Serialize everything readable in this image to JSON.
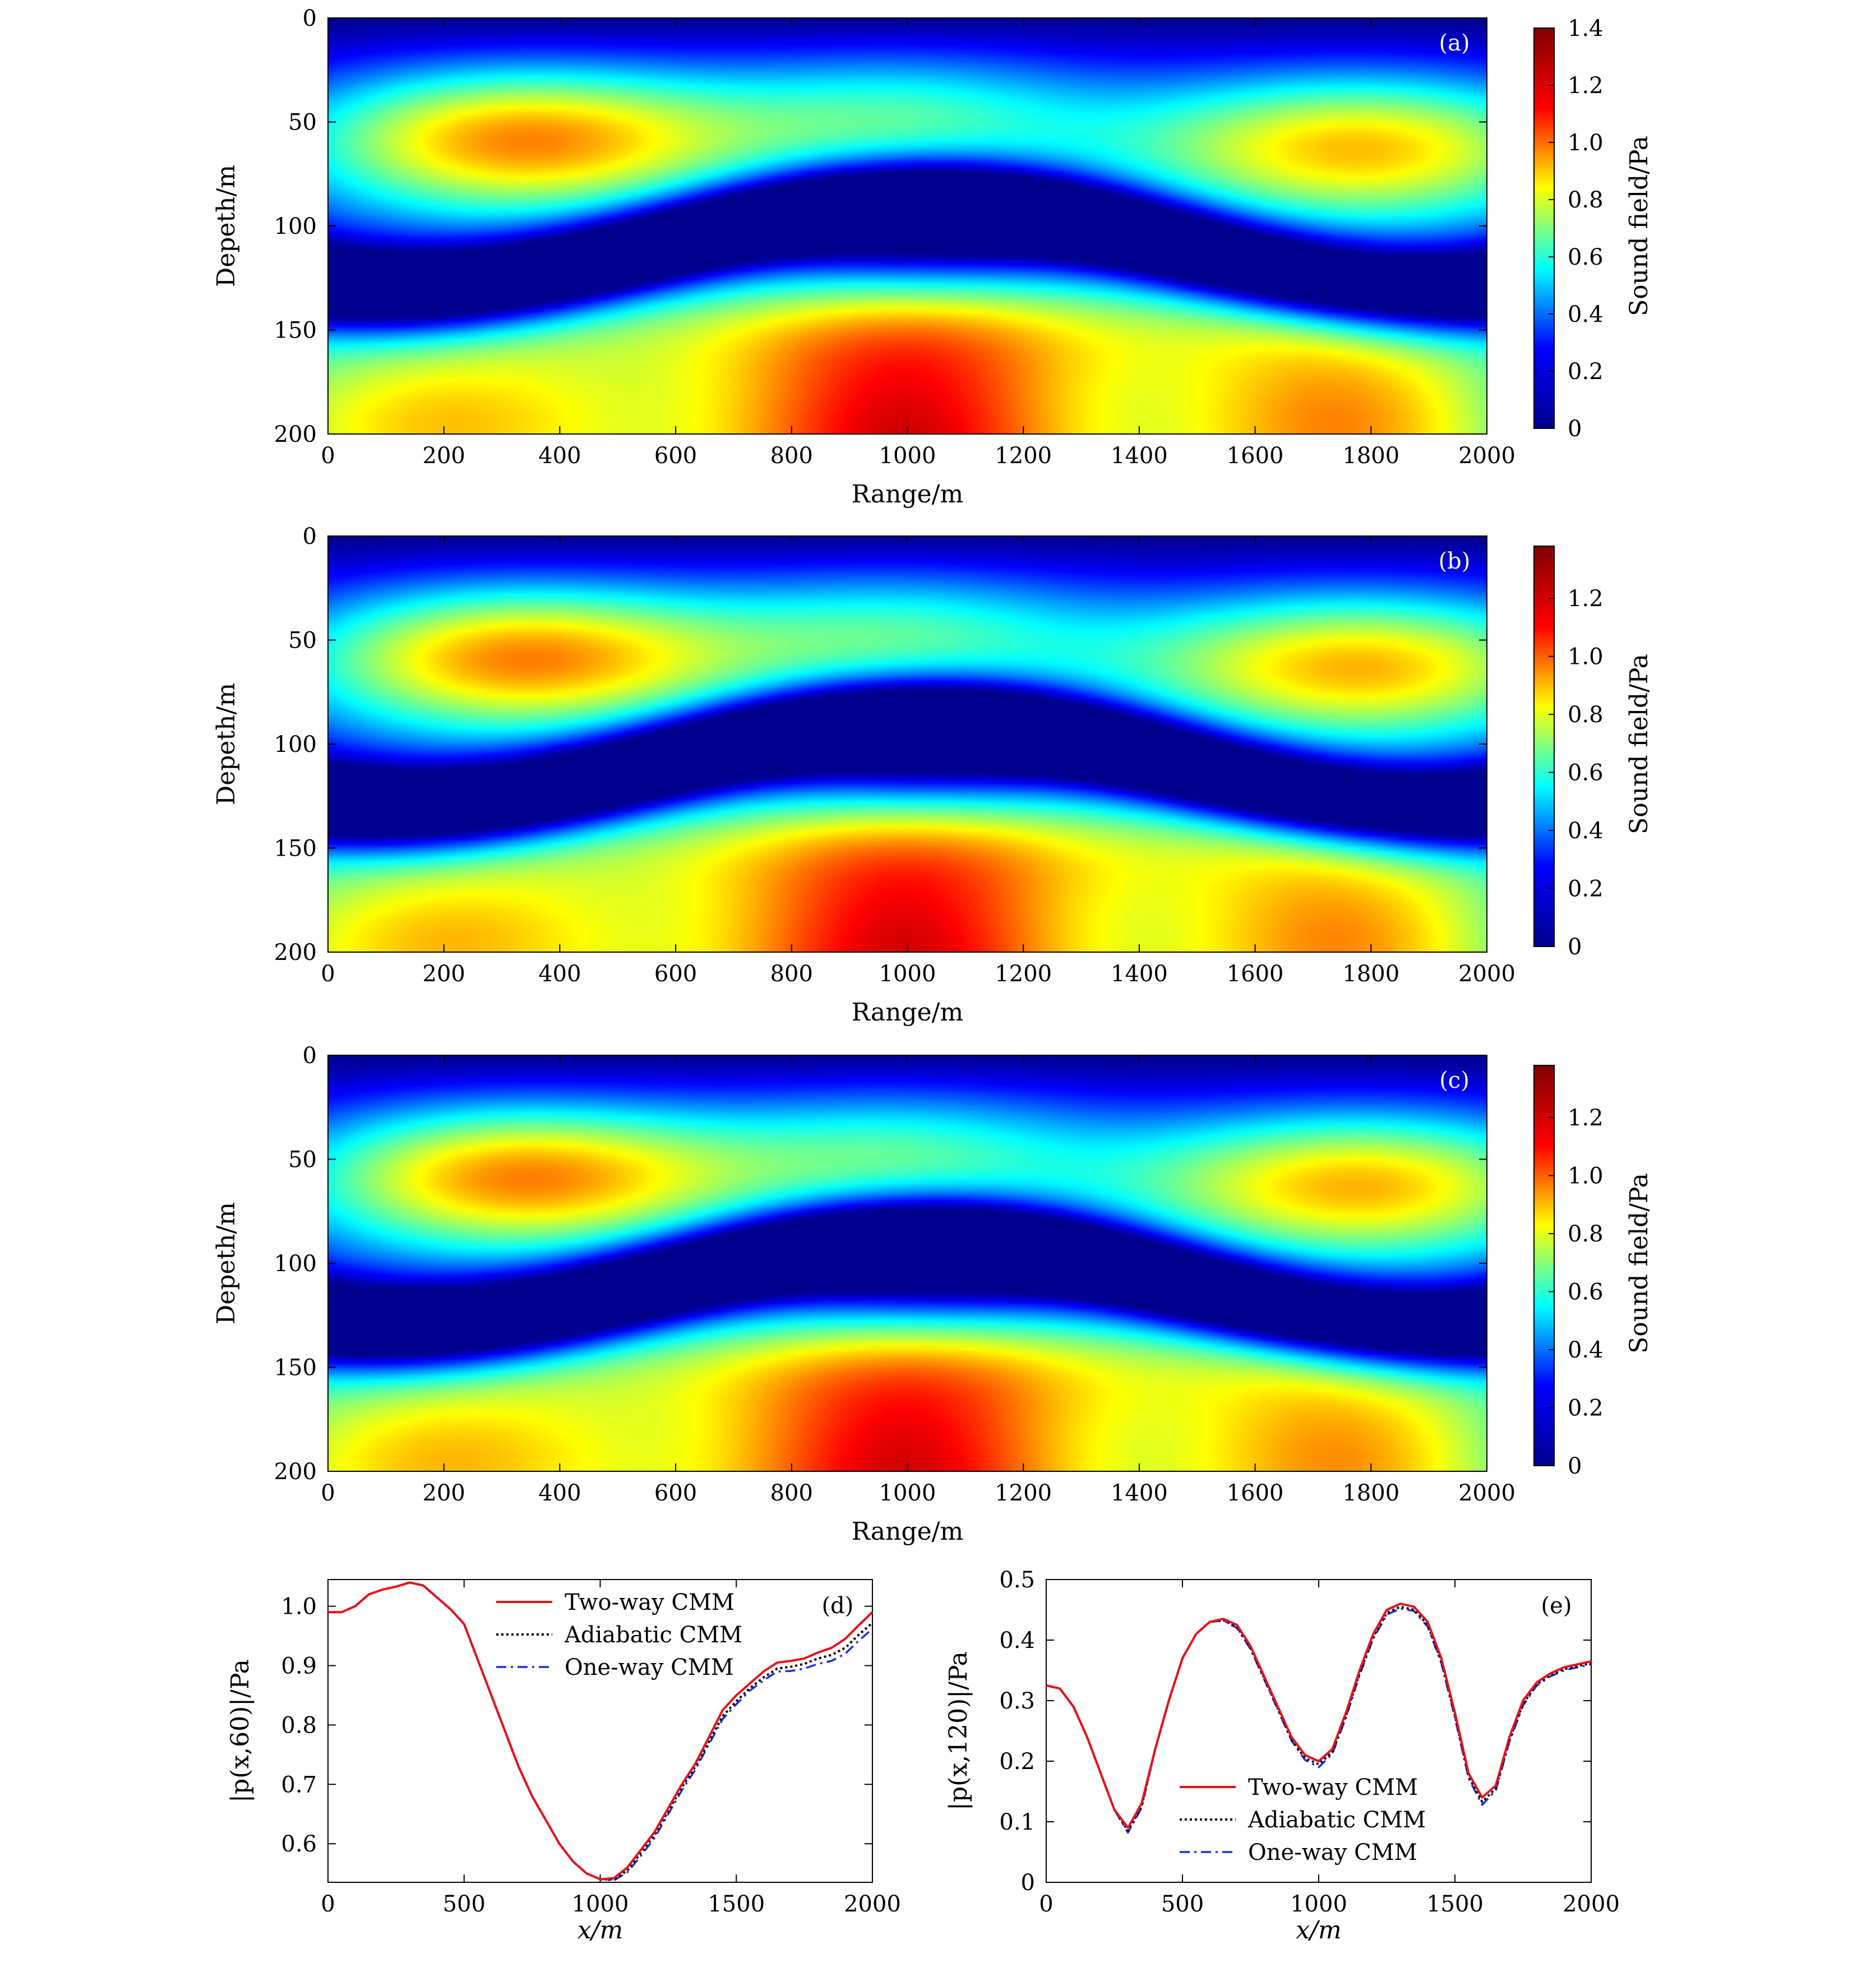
{
  "figure": {
    "colors": {
      "two_way": "#e8101a",
      "adiabatic": "#000000",
      "one_way": "#1a2fd8",
      "jet_colormap": [
        "#00008f",
        "#0000ff",
        "#00ffff",
        "#ffff00",
        "#ff0000",
        "#800000"
      ]
    }
  },
  "chart_data": [
    {
      "type": "heatmap",
      "panel_label": "(a)",
      "xlabel": "Range/m",
      "ylabel": "Depeth/m",
      "colorbar_label": "Sound field/Pa",
      "xlim": [
        0,
        2000
      ],
      "ylim": [
        200,
        0
      ],
      "xticks": [
        "0",
        "200",
        "400",
        "600",
        "800",
        "1000",
        "1200",
        "1400",
        "1600",
        "1800",
        "2000"
      ],
      "yticks": [
        "0",
        "50",
        "100",
        "150",
        "200"
      ],
      "colorbar_range": [
        0,
        1.4
      ],
      "colorbar_ticks": [
        "0",
        "0.2",
        "0.4",
        "0.6",
        "0.8",
        "1.0",
        "1.2",
        "1.4"
      ],
      "features": [
        {
          "kind": "maximum",
          "x": 1000,
          "y": 200,
          "value": 1.4
        },
        {
          "kind": "maximum",
          "x": 330,
          "y": 58,
          "value": 1.05
        },
        {
          "kind": "maximum",
          "x": 1750,
          "y": 195,
          "value": 1.08
        },
        {
          "kind": "minimum",
          "x": 1030,
          "y": 110,
          "value": 0.05
        },
        {
          "kind": "minimum",
          "x": 100,
          "y": 130,
          "value": 0.05
        },
        {
          "kind": "surface",
          "y": 0,
          "value": 0
        }
      ]
    },
    {
      "type": "heatmap",
      "panel_label": "(b)",
      "xlabel": "Range/m",
      "ylabel": "Depeth/m",
      "colorbar_label": "Sound field/Pa",
      "xlim": [
        0,
        2000
      ],
      "ylim": [
        200,
        0
      ],
      "xticks": [
        "0",
        "200",
        "400",
        "600",
        "800",
        "1000",
        "1200",
        "1400",
        "1600",
        "1800",
        "2000"
      ],
      "yticks": [
        "0",
        "50",
        "100",
        "150",
        "200"
      ],
      "colorbar_range": [
        0,
        1.38
      ],
      "colorbar_ticks": [
        "0",
        "0.2",
        "0.4",
        "0.6",
        "0.8",
        "1.0",
        "1.2"
      ],
      "features": [
        {
          "kind": "maximum",
          "x": 1000,
          "y": 200,
          "value": 1.38
        },
        {
          "kind": "maximum",
          "x": 330,
          "y": 58,
          "value": 1.04
        },
        {
          "kind": "maximum",
          "x": 1750,
          "y": 195,
          "value": 1.06
        },
        {
          "kind": "minimum",
          "x": 1030,
          "y": 110,
          "value": 0.05
        },
        {
          "kind": "minimum",
          "x": 100,
          "y": 130,
          "value": 0.05
        },
        {
          "kind": "surface",
          "y": 0,
          "value": 0
        }
      ]
    },
    {
      "type": "heatmap",
      "panel_label": "(c)",
      "xlabel": "Range/m",
      "ylabel": "Depeth/m",
      "colorbar_label": "Sound field/Pa",
      "xlim": [
        0,
        2000
      ],
      "ylim": [
        200,
        0
      ],
      "xticks": [
        "0",
        "200",
        "400",
        "600",
        "800",
        "1000",
        "1200",
        "1400",
        "1600",
        "1800",
        "2000"
      ],
      "yticks": [
        "0",
        "50",
        "100",
        "150",
        "200"
      ],
      "colorbar_range": [
        0,
        1.38
      ],
      "colorbar_ticks": [
        "0",
        "0.2",
        "0.4",
        "0.6",
        "0.8",
        "1.0",
        "1.2"
      ],
      "features": [
        {
          "kind": "maximum",
          "x": 1000,
          "y": 200,
          "value": 1.38
        },
        {
          "kind": "maximum",
          "x": 330,
          "y": 58,
          "value": 1.04
        },
        {
          "kind": "maximum",
          "x": 1750,
          "y": 195,
          "value": 1.05
        },
        {
          "kind": "minimum",
          "x": 1030,
          "y": 110,
          "value": 0.05
        },
        {
          "kind": "minimum",
          "x": 100,
          "y": 130,
          "value": 0.05
        },
        {
          "kind": "surface",
          "y": 0,
          "value": 0
        }
      ]
    },
    {
      "type": "line",
      "panel_label": "(d)",
      "xlabel": "x/m",
      "ylabel": "|p(x,60)|/Pa",
      "xlim": [
        0,
        2000
      ],
      "ylim": [
        0.535,
        1.045
      ],
      "xticks": [
        "0",
        "500",
        "1000",
        "1500",
        "2000"
      ],
      "yticks": [
        "0.6",
        "0.7",
        "0.8",
        "0.9",
        "1.0"
      ],
      "legend_position": "top-right",
      "x": [
        0,
        50,
        100,
        150,
        200,
        250,
        300,
        350,
        400,
        450,
        500,
        550,
        600,
        650,
        700,
        750,
        800,
        850,
        900,
        950,
        1000,
        1050,
        1100,
        1150,
        1200,
        1250,
        1300,
        1350,
        1400,
        1450,
        1500,
        1550,
        1600,
        1650,
        1700,
        1750,
        1800,
        1850,
        1900,
        1950,
        2000
      ],
      "series": [
        {
          "name": "Two-way CMM",
          "style": "solid",
          "values": [
            0.99,
            0.99,
            1.0,
            1.02,
            1.028,
            1.033,
            1.04,
            1.035,
            1.015,
            0.995,
            0.97,
            0.91,
            0.85,
            0.79,
            0.73,
            0.68,
            0.64,
            0.6,
            0.57,
            0.55,
            0.54,
            0.542,
            0.56,
            0.59,
            0.62,
            0.66,
            0.7,
            0.735,
            0.78,
            0.825,
            0.85,
            0.87,
            0.89,
            0.905,
            0.908,
            0.912,
            0.922,
            0.93,
            0.945,
            0.968,
            0.99
          ]
        },
        {
          "name": "Adiabatic CMM",
          "style": "dotted",
          "values": [
            0.99,
            0.99,
            1.0,
            1.02,
            1.028,
            1.033,
            1.04,
            1.035,
            1.015,
            0.995,
            0.97,
            0.91,
            0.85,
            0.79,
            0.73,
            0.68,
            0.64,
            0.6,
            0.57,
            0.55,
            0.54,
            0.54,
            0.555,
            0.585,
            0.615,
            0.655,
            0.695,
            0.73,
            0.772,
            0.815,
            0.84,
            0.862,
            0.88,
            0.895,
            0.898,
            0.903,
            0.912,
            0.918,
            0.93,
            0.952,
            0.972
          ]
        },
        {
          "name": "One-way CMM",
          "style": "dashdot",
          "values": [
            0.99,
            0.99,
            1.0,
            1.02,
            1.028,
            1.033,
            1.04,
            1.035,
            1.015,
            0.995,
            0.97,
            0.91,
            0.85,
            0.79,
            0.73,
            0.68,
            0.64,
            0.6,
            0.57,
            0.55,
            0.54,
            0.538,
            0.552,
            0.58,
            0.61,
            0.65,
            0.69,
            0.725,
            0.768,
            0.81,
            0.835,
            0.858,
            0.875,
            0.89,
            0.891,
            0.895,
            0.903,
            0.908,
            0.92,
            0.942,
            0.962
          ]
        }
      ]
    },
    {
      "type": "line",
      "panel_label": "(e)",
      "xlabel": "x/m",
      "ylabel": "|p(x,120)|/Pa",
      "xlim": [
        0,
        2000
      ],
      "ylim": [
        0,
        0.5
      ],
      "xticks": [
        "0",
        "500",
        "1000",
        "1500",
        "2000"
      ],
      "yticks": [
        "0",
        "0.1",
        "0.2",
        "0.3",
        "0.4",
        "0.5"
      ],
      "legend_position": "bottom-center",
      "x": [
        0,
        50,
        100,
        150,
        200,
        250,
        300,
        350,
        400,
        450,
        500,
        550,
        600,
        650,
        700,
        750,
        800,
        850,
        900,
        950,
        1000,
        1050,
        1100,
        1150,
        1200,
        1250,
        1300,
        1350,
        1400,
        1450,
        1500,
        1550,
        1600,
        1650,
        1700,
        1750,
        1800,
        1850,
        1900,
        1950,
        2000
      ],
      "series": [
        {
          "name": "Two-way CMM",
          "style": "solid",
          "values": [
            0.325,
            0.32,
            0.29,
            0.24,
            0.18,
            0.12,
            0.09,
            0.13,
            0.22,
            0.3,
            0.37,
            0.41,
            0.43,
            0.435,
            0.425,
            0.39,
            0.34,
            0.29,
            0.24,
            0.21,
            0.2,
            0.22,
            0.28,
            0.35,
            0.41,
            0.45,
            0.46,
            0.455,
            0.43,
            0.37,
            0.28,
            0.18,
            0.14,
            0.16,
            0.24,
            0.3,
            0.33,
            0.345,
            0.355,
            0.36,
            0.365
          ]
        },
        {
          "name": "Adiabatic CMM",
          "style": "dotted",
          "values": [
            0.325,
            0.32,
            0.29,
            0.24,
            0.18,
            0.12,
            0.085,
            0.125,
            0.22,
            0.3,
            0.37,
            0.41,
            0.43,
            0.433,
            0.422,
            0.387,
            0.337,
            0.287,
            0.236,
            0.205,
            0.195,
            0.215,
            0.275,
            0.345,
            0.405,
            0.445,
            0.455,
            0.45,
            0.425,
            0.365,
            0.275,
            0.175,
            0.133,
            0.155,
            0.235,
            0.295,
            0.327,
            0.342,
            0.352,
            0.357,
            0.362
          ]
        },
        {
          "name": "One-way CMM",
          "style": "dashdot",
          "values": [
            0.325,
            0.32,
            0.29,
            0.24,
            0.18,
            0.12,
            0.082,
            0.123,
            0.22,
            0.3,
            0.37,
            0.41,
            0.43,
            0.432,
            0.42,
            0.385,
            0.335,
            0.285,
            0.234,
            0.202,
            0.19,
            0.212,
            0.272,
            0.342,
            0.402,
            0.442,
            0.452,
            0.448,
            0.422,
            0.362,
            0.272,
            0.172,
            0.128,
            0.152,
            0.232,
            0.292,
            0.325,
            0.34,
            0.35,
            0.355,
            0.36
          ]
        }
      ]
    }
  ]
}
